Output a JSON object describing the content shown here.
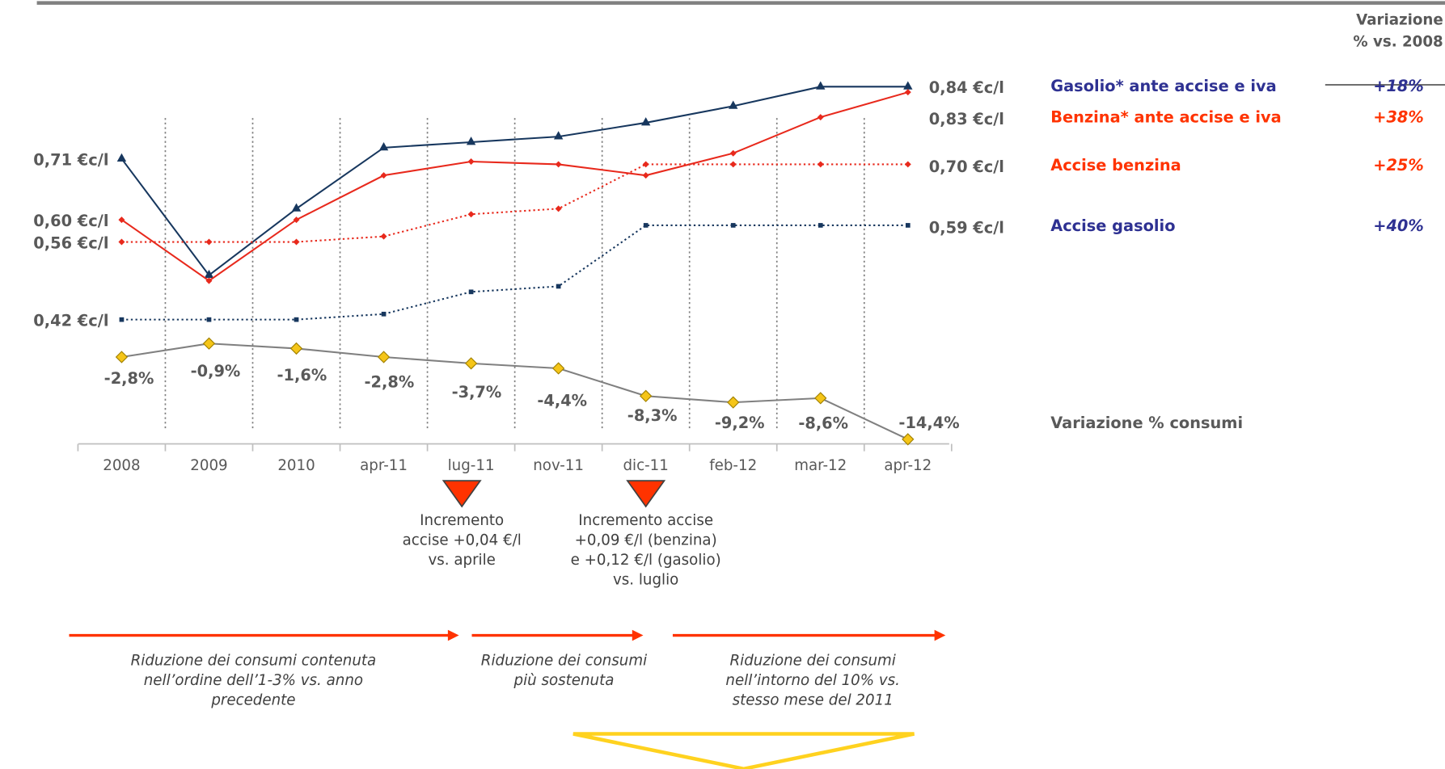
{
  "chart_data": {
    "type": "line",
    "header": [
      "Variazione",
      "% vs. 2008"
    ],
    "categories": [
      "2008",
      "2009",
      "2010",
      "apr-11",
      "lug-11",
      "nov-11",
      "dic-11",
      "feb-12",
      "mar-12",
      "apr-12"
    ],
    "series": [
      {
        "name": "Gasolio* ante accise e iva",
        "color": "#17375e",
        "legend_color": "#2e3192",
        "dashed": false,
        "marker": "triangle",
        "change": "+18%",
        "values": [
          0.71,
          0.5,
          0.62,
          0.73,
          0.74,
          0.75,
          0.775,
          0.805,
          0.84,
          0.84
        ],
        "value_labels": [
          "0,71  €c/l",
          null,
          null,
          null,
          null,
          null,
          null,
          null,
          null,
          "0,84 €c/l"
        ]
      },
      {
        "name": "Benzina* ante accise e iva",
        "color": "#e8291c",
        "legend_color": "#ff3300",
        "dashed": false,
        "marker": "diamond",
        "change": "+38%",
        "values": [
          0.6,
          0.49,
          0.6,
          0.68,
          0.705,
          0.7,
          0.68,
          0.72,
          0.785,
          0.83
        ],
        "value_labels": [
          "0,60  €c/l",
          null,
          null,
          null,
          null,
          null,
          null,
          null,
          null,
          "0,83 €c/l"
        ]
      },
      {
        "name": "Accise benzina",
        "color": "#e8291c",
        "legend_color": "#ff3300",
        "dashed": true,
        "marker": "diamond",
        "change": "+25%",
        "values": [
          0.56,
          0.56,
          0.56,
          0.57,
          0.61,
          0.62,
          0.7,
          0.7,
          0.7,
          0.7
        ],
        "value_labels": [
          "0,56  €c/l",
          null,
          null,
          null,
          null,
          null,
          null,
          null,
          null,
          "0,70 €c/l"
        ]
      },
      {
        "name": "Accise gasolio",
        "color": "#17375e",
        "legend_color": "#2e3192",
        "dashed": true,
        "marker": "square",
        "change": "+40%",
        "values": [
          0.42,
          0.42,
          0.42,
          0.43,
          0.47,
          0.48,
          0.59,
          0.59,
          0.59,
          0.59
        ],
        "value_labels": [
          "0,42  €c/l",
          null,
          null,
          null,
          null,
          null,
          null,
          null,
          null,
          "0,59 €c/l"
        ]
      },
      {
        "name": "Variazione % consumi",
        "color": "#808080",
        "legend_color": "#595959",
        "marker_color": "#f5c518",
        "dashed": false,
        "marker": "bigdiamond",
        "axis": "y2",
        "values": [
          -2.8,
          -0.9,
          -1.6,
          -2.8,
          -3.7,
          -4.4,
          -8.3,
          -9.2,
          -8.6,
          -14.4
        ],
        "value_labels": [
          "-2,8%",
          "-0,9%",
          "-1,6%",
          "-2,8%",
          "-3,7%",
          "-4,4%",
          "-8,3%",
          "-9,2%",
          "-8,6%",
          "-14,4%"
        ]
      }
    ],
    "annotations": [
      [
        "Incremento",
        "accise +0,04 €/l",
        "vs. aprile"
      ],
      [
        "Incremento accise",
        "+0,09 €/l (benzina)",
        "e +0,12 €/l (gasolio)",
        "vs. luglio"
      ]
    ],
    "phases": [
      [
        "Riduzione dei consumi contenuta",
        "nell’ordine dell’1-3% vs. anno",
        "precedente"
      ],
      [
        "Riduzione dei consumi",
        "più sostenuta"
      ],
      [
        "Riduzione dei consumi",
        "nell’intorno del 10% vs.",
        "stesso mese del 2011"
      ]
    ]
  }
}
